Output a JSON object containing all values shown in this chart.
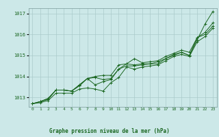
{
  "background_color": "#cce8e8",
  "plot_bg_color": "#cce8e8",
  "grid_color": "#aacaca",
  "line_color": "#1a6620",
  "title": "Graphe pression niveau de la mer (hPa)",
  "ylim": [
    1012.55,
    1017.25
  ],
  "xlim": [
    -0.5,
    23.5
  ],
  "yticks": [
    1013,
    1014,
    1015,
    1016,
    1017
  ],
  "xtick_labels": [
    "0",
    "1",
    "2",
    "3",
    "4",
    "5",
    "6",
    "7",
    "8",
    "9",
    "10",
    "11",
    "12",
    "13",
    "14",
    "15",
    "16",
    "17",
    "18",
    "19",
    "20",
    "21",
    "22",
    "23"
  ],
  "series": [
    [
      1012.7,
      1012.8,
      1012.9,
      1013.35,
      1013.35,
      1013.3,
      1013.55,
      1013.9,
      1013.95,
      1013.85,
      1013.9,
      1014.35,
      1014.6,
      1014.55,
      1014.6,
      1014.6,
      1014.7,
      1014.85,
      1015.05,
      1015.15,
      1015.0,
      1015.75,
      1016.5,
      1017.1
    ],
    [
      1012.7,
      1012.8,
      1012.95,
      1013.35,
      1013.35,
      1013.3,
      1013.6,
      1013.9,
      1014.0,
      1014.05,
      1014.05,
      1014.55,
      1014.6,
      1014.85,
      1014.65,
      1014.7,
      1014.75,
      1014.95,
      1015.1,
      1015.25,
      1015.15,
      1015.85,
      1016.1,
      1016.55
    ],
    [
      1012.7,
      1012.8,
      1012.95,
      1013.35,
      1013.35,
      1013.3,
      1013.6,
      1013.9,
      1013.6,
      1013.75,
      1013.85,
      1014.35,
      1014.5,
      1014.5,
      1014.55,
      1014.6,
      1014.6,
      1014.85,
      1015.0,
      1015.15,
      1015.0,
      1015.85,
      1016.0,
      1016.4
    ],
    [
      1012.7,
      1012.75,
      1012.85,
      1013.2,
      1013.2,
      1013.2,
      1013.4,
      1013.45,
      1013.4,
      1013.3,
      1013.7,
      1013.95,
      1014.45,
      1014.35,
      1014.45,
      1014.5,
      1014.55,
      1014.75,
      1014.95,
      1015.05,
      1014.95,
      1015.65,
      1015.9,
      1016.3
    ]
  ],
  "figsize": [
    3.2,
    2.0
  ],
  "dpi": 100
}
